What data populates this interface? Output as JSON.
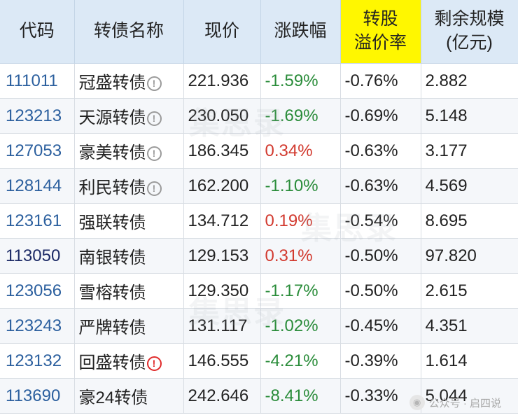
{
  "table": {
    "headers": {
      "code": "代码",
      "name": "转债名称",
      "price": "现价",
      "change": "涨跌幅",
      "premium": "转股溢价率",
      "scale": "剩余规模(亿元)"
    },
    "rows": [
      {
        "code": "111011",
        "name": "冠盛转债",
        "price": "221.936",
        "change": "-1.59%",
        "premium": "-0.76%",
        "scale": "2.882",
        "trend": "down",
        "flag": "info"
      },
      {
        "code": "123213",
        "name": "天源转债",
        "price": "230.050",
        "change": "-1.69%",
        "premium": "-0.69%",
        "scale": "5.148",
        "trend": "down",
        "flag": "info"
      },
      {
        "code": "127053",
        "name": "豪美转债",
        "price": "186.345",
        "change": "0.34%",
        "premium": "-0.63%",
        "scale": "3.177",
        "trend": "up",
        "flag": "info"
      },
      {
        "code": "128144",
        "name": "利民转债",
        "price": "162.200",
        "change": "-1.10%",
        "premium": "-0.63%",
        "scale": "4.569",
        "trend": "down",
        "flag": "info"
      },
      {
        "code": "123161",
        "name": "强联转债",
        "price": "134.712",
        "change": "0.19%",
        "premium": "-0.54%",
        "scale": "8.695",
        "trend": "up",
        "flag": "none"
      },
      {
        "code": "113050",
        "name": "南银转债",
        "price": "129.153",
        "change": "0.31%",
        "premium": "-0.50%",
        "scale": "97.820",
        "trend": "up",
        "flag": "none"
      },
      {
        "code": "123056",
        "name": "雪榕转债",
        "price": "129.350",
        "change": "-1.17%",
        "premium": "-0.50%",
        "scale": "2.615",
        "trend": "down",
        "flag": "none"
      },
      {
        "code": "123243",
        "name": "严牌转债",
        "price": "131.117",
        "change": "-1.02%",
        "premium": "-0.45%",
        "scale": "4.351",
        "trend": "down",
        "flag": "none"
      },
      {
        "code": "123132",
        "name": "回盛转债",
        "price": "146.555",
        "change": "-4.21%",
        "premium": "-0.39%",
        "scale": "1.614",
        "trend": "down",
        "flag": "alert"
      },
      {
        "code": "113690",
        "name": "豪24转债",
        "price": "242.646",
        "change": "-8.41%",
        "premium": "-0.33%",
        "scale": "5.044",
        "trend": "down",
        "flag": "none"
      }
    ]
  },
  "icons": {
    "info": "exclamation-circle-icon",
    "alert": "exclamation-circle-red-icon"
  },
  "colors": {
    "header_bg": "#dce9f6",
    "highlight": "#fff700",
    "up": "#d23a2f",
    "down": "#2a8c3a",
    "code": "#2b5f9e"
  },
  "credit": {
    "text": "公众号 · 启四说"
  }
}
